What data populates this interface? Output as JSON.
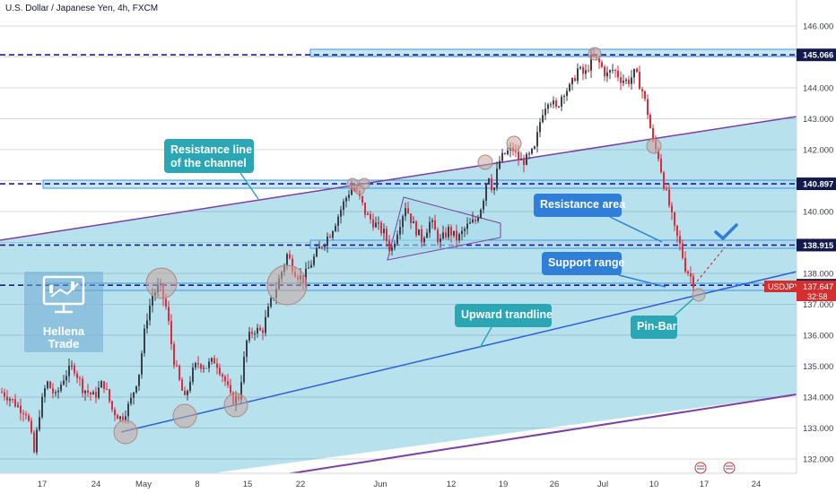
{
  "header": {
    "title": "U.S. Dollar / Japanese Yen, 4h, FXCM"
  },
  "logo": {
    "line1": "Hellena",
    "line2": "Trade"
  },
  "colors": {
    "background": "#ffffff",
    "channel_fill": "#a9dcea",
    "up_candle": "#3a3f4a",
    "down_candle": "#e8283a",
    "level_line": "#1a1f8c",
    "channel_border": "#7d3fa0",
    "trendline": "#2d5fd6",
    "zone_fill": "#b4d8f0",
    "zone_border": "#3a9bd9",
    "callout_teal": "#2aa6b5",
    "callout_blue": "#2f7fd8",
    "price_tag_navy": "#131a4b",
    "price_tag_red": "#d32f2f",
    "circle_fill": "#c9a8a0",
    "checkmark": "#2f7fd8"
  },
  "chart_data": {
    "type": "candlestick",
    "symbol": "USDJPY",
    "timeframe": "4h",
    "x_tick_labels": [
      "17",
      "24",
      "May",
      "8",
      "15",
      "22",
      "Jun",
      "12",
      "19",
      "26",
      "Jul",
      "10",
      "17",
      "24"
    ],
    "y_tick_labels": [
      "132.000",
      "133.000",
      "134.000",
      "135.000",
      "136.000",
      "137.000",
      "138.000",
      "139.000",
      "140.000",
      "141.000",
      "142.000",
      "143.000",
      "144.000",
      "145.000",
      "146.000"
    ],
    "ylim": [
      131.7,
      146.3
    ],
    "price_path": [
      [
        0,
        134.2
      ],
      [
        10,
        134.0
      ],
      [
        20,
        133.7
      ],
      [
        30,
        133.5
      ],
      [
        38,
        132.2
      ],
      [
        44,
        133.5
      ],
      [
        52,
        134.5
      ],
      [
        62,
        134.0
      ],
      [
        72,
        134.7
      ],
      [
        82,
        135.0
      ],
      [
        92,
        134.3
      ],
      [
        105,
        134.0
      ],
      [
        115,
        134.5
      ],
      [
        125,
        133.6
      ],
      [
        135,
        133.3
      ],
      [
        145,
        133.8
      ],
      [
        155,
        134.8
      ],
      [
        163,
        136.5
      ],
      [
        170,
        137.3
      ],
      [
        178,
        137.6
      ],
      [
        186,
        136.8
      ],
      [
        193,
        135.3
      ],
      [
        200,
        134.5
      ],
      [
        206,
        133.9
      ],
      [
        213,
        134.7
      ],
      [
        220,
        135.1
      ],
      [
        230,
        135.0
      ],
      [
        240,
        135.2
      ],
      [
        250,
        134.6
      ],
      [
        258,
        133.9
      ],
      [
        266,
        134.0
      ],
      [
        275,
        135.8
      ],
      [
        283,
        136.2
      ],
      [
        292,
        136.1
      ],
      [
        300,
        136.9
      ],
      [
        310,
        137.7
      ],
      [
        320,
        138.6
      ],
      [
        330,
        138.0
      ],
      [
        338,
        137.8
      ],
      [
        348,
        138.4
      ],
      [
        358,
        138.9
      ],
      [
        368,
        139.3
      ],
      [
        376,
        139.8
      ],
      [
        385,
        140.4
      ],
      [
        392,
        140.8
      ],
      [
        400,
        140.5
      ],
      [
        408,
        139.9
      ],
      [
        418,
        139.6
      ],
      [
        428,
        139.3
      ],
      [
        436,
        138.7
      ],
      [
        444,
        139.5
      ],
      [
        452,
        140.2
      ],
      [
        460,
        139.6
      ],
      [
        470,
        139.1
      ],
      [
        480,
        139.7
      ],
      [
        490,
        139.0
      ],
      [
        500,
        139.4
      ],
      [
        510,
        139.1
      ],
      [
        520,
        139.5
      ],
      [
        530,
        139.7
      ],
      [
        538,
        140.3
      ],
      [
        544,
        141.3
      ],
      [
        550,
        140.6
      ],
      [
        556,
        141.6
      ],
      [
        564,
        141.9
      ],
      [
        572,
        142.0
      ],
      [
        580,
        141.6
      ],
      [
        588,
        141.7
      ],
      [
        596,
        142.0
      ],
      [
        604,
        143.2
      ],
      [
        612,
        143.7
      ],
      [
        620,
        143.3
      ],
      [
        628,
        143.9
      ],
      [
        636,
        144.0
      ],
      [
        644,
        144.6
      ],
      [
        652,
        144.4
      ],
      [
        660,
        145.0
      ],
      [
        668,
        144.8
      ],
      [
        676,
        144.4
      ],
      [
        684,
        144.6
      ],
      [
        692,
        144.3
      ],
      [
        700,
        144.2
      ],
      [
        708,
        144.5
      ],
      [
        716,
        143.9
      ],
      [
        722,
        143.2
      ],
      [
        728,
        142.2
      ],
      [
        734,
        141.8
      ],
      [
        740,
        140.9
      ],
      [
        746,
        140.2
      ],
      [
        752,
        139.4
      ],
      [
        758,
        138.9
      ],
      [
        764,
        138.2
      ],
      [
        770,
        137.9
      ],
      [
        775,
        137.6
      ]
    ],
    "current_price": "137.647",
    "countdown": "32:58",
    "levels": [
      {
        "value": 145.066,
        "label": "145.066"
      },
      {
        "value": 140.897,
        "label": "140.897"
      },
      {
        "value": 138.915,
        "label": "138.915"
      },
      {
        "value": 137.619,
        "label": "137.619"
      }
    ],
    "annotations": [
      {
        "text": "Resistance line\nof the channel",
        "style": "teal"
      },
      {
        "text": "Resistance area",
        "style": "blue"
      },
      {
        "text": "Support range",
        "style": "blue"
      },
      {
        "text": "Upward trandline",
        "style": "teal"
      },
      {
        "text": "Pin-Bar",
        "style": "teal"
      }
    ]
  }
}
